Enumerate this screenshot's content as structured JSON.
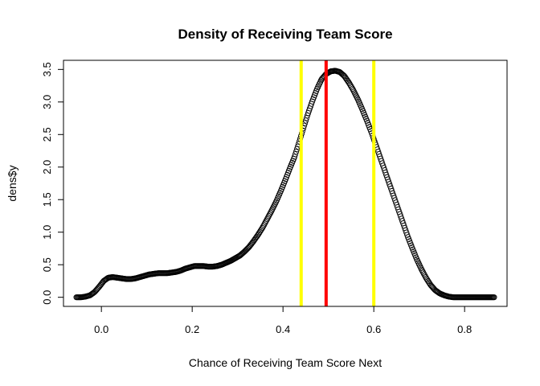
{
  "chart_data": {
    "type": "scatter",
    "title": "Density of Receiving Team Score",
    "xlabel": "Chance of Receiving Team Score Next",
    "ylabel": "dens$y",
    "xlim": [
      -0.0835,
      0.8935
    ],
    "ylim": [
      -0.14,
      3.64
    ],
    "x_ticks": [
      "0.0",
      "0.2",
      "0.4",
      "0.6",
      "0.8"
    ],
    "y_ticks": [
      "0.0",
      "0.5",
      "1.0",
      "1.5",
      "2.0",
      "2.5",
      "3.0",
      "3.5"
    ],
    "grid": false,
    "legend": "none",
    "marker": "open-circle",
    "series": [
      {
        "x": [
          -0.055,
          -0.045,
          -0.035,
          -0.025,
          -0.015,
          -0.005,
          0.005,
          0.015,
          0.025,
          0.035,
          0.045,
          0.055,
          0.065,
          0.075,
          0.085,
          0.095,
          0.105,
          0.115,
          0.125,
          0.135,
          0.145,
          0.155,
          0.165,
          0.175,
          0.185,
          0.195,
          0.205,
          0.215,
          0.225,
          0.235,
          0.245,
          0.255,
          0.265,
          0.275,
          0.285,
          0.295,
          0.305,
          0.315,
          0.325,
          0.335,
          0.345,
          0.355,
          0.365,
          0.375,
          0.385,
          0.395,
          0.405,
          0.415,
          0.425,
          0.435,
          0.445,
          0.455,
          0.465,
          0.475,
          0.485,
          0.495,
          0.505,
          0.515,
          0.525,
          0.535,
          0.545,
          0.555,
          0.565,
          0.575,
          0.585,
          0.595,
          0.605,
          0.615,
          0.625,
          0.635,
          0.645,
          0.655,
          0.665,
          0.675,
          0.685,
          0.695,
          0.705,
          0.715,
          0.725,
          0.735,
          0.745,
          0.755,
          0.765,
          0.775,
          0.785,
          0.795,
          0.805,
          0.815,
          0.825,
          0.835,
          0.845,
          0.855,
          0.865
        ],
        "y": [
          0.0,
          0.0,
          0.01,
          0.03,
          0.08,
          0.16,
          0.25,
          0.3,
          0.31,
          0.3,
          0.29,
          0.28,
          0.28,
          0.29,
          0.31,
          0.33,
          0.35,
          0.36,
          0.37,
          0.37,
          0.37,
          0.38,
          0.39,
          0.41,
          0.44,
          0.46,
          0.48,
          0.48,
          0.48,
          0.47,
          0.47,
          0.48,
          0.5,
          0.53,
          0.56,
          0.6,
          0.64,
          0.7,
          0.77,
          0.86,
          0.96,
          1.07,
          1.2,
          1.33,
          1.47,
          1.63,
          1.8,
          1.98,
          2.15,
          2.37,
          2.6,
          2.82,
          3.02,
          3.2,
          3.35,
          3.43,
          3.47,
          3.48,
          3.46,
          3.4,
          3.3,
          3.18,
          3.04,
          2.88,
          2.71,
          2.53,
          2.33,
          2.13,
          1.93,
          1.73,
          1.53,
          1.33,
          1.13,
          0.93,
          0.75,
          0.58,
          0.43,
          0.3,
          0.19,
          0.11,
          0.06,
          0.03,
          0.01,
          0.0,
          0.0,
          0.0,
          0.0,
          0.0,
          0.0,
          0.0,
          0.0,
          0.0,
          0.0
        ]
      }
    ],
    "vlines": [
      {
        "x": 0.44,
        "color": "#ffff00"
      },
      {
        "x": 0.495,
        "color": "#ff0000"
      },
      {
        "x": 0.6,
        "color": "#ffff00"
      }
    ]
  }
}
